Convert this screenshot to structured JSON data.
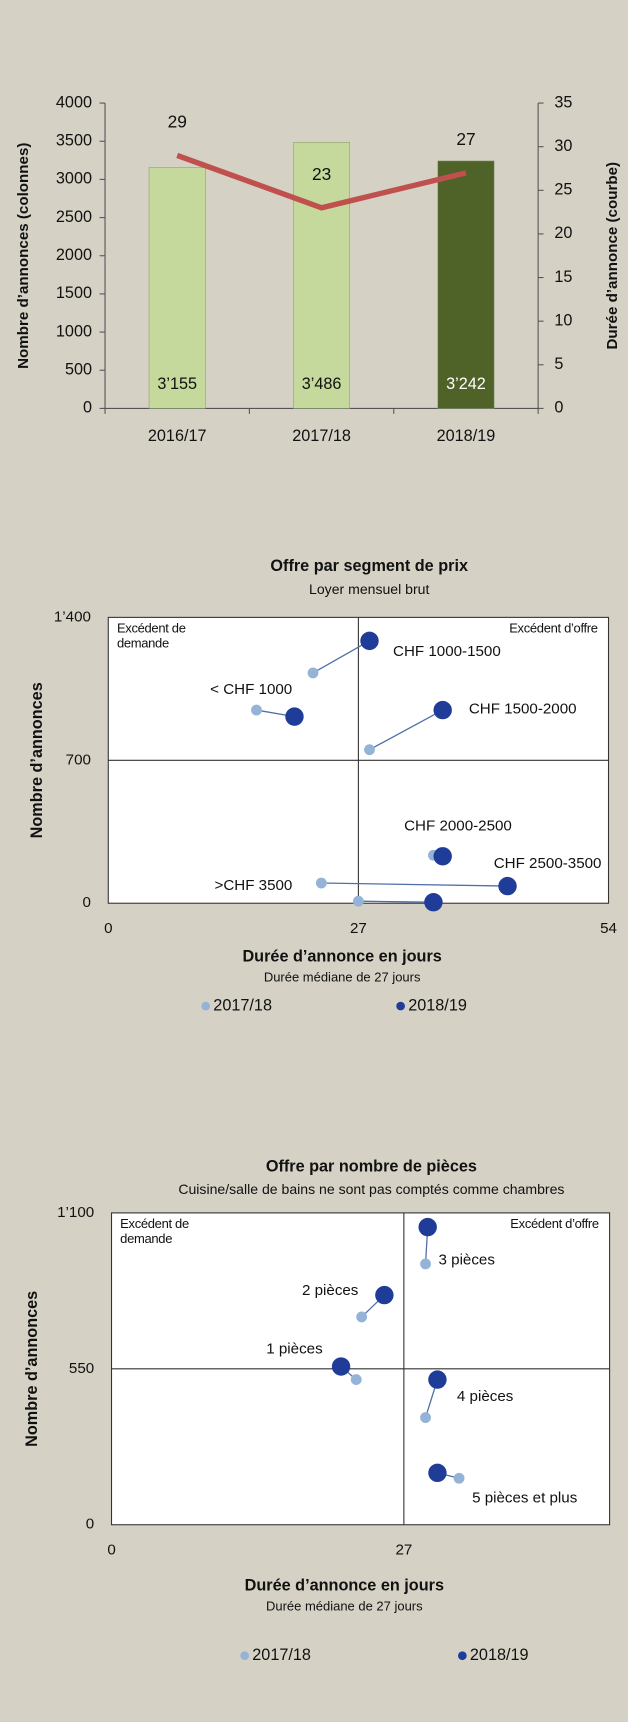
{
  "chart_data": [
    {
      "type": "bar",
      "categories": [
        "2016/17",
        "2017/18",
        "2018/19"
      ],
      "ylabel": "Nombre d’annonces (colonnes)",
      "y2label": "Durée d’annonce (courbe)",
      "ylim": [
        0,
        4000
      ],
      "yticks": [
        0,
        500,
        1000,
        1500,
        2000,
        2500,
        3000,
        3500,
        4000
      ],
      "y2lim": [
        0,
        35
      ],
      "y2ticks": [
        0,
        5,
        10,
        15,
        20,
        25,
        30,
        35
      ],
      "series": [
        {
          "type": "bar",
          "colors": [
            "#c4d99b",
            "#c4d99b",
            "#4f6228"
          ],
          "values": [
            3155,
            3486,
            3242
          ],
          "value_labels": [
            "3’155",
            "3’486",
            "3’242"
          ]
        },
        {
          "type": "line",
          "axis": "y2",
          "color": "#c0504d",
          "values": [
            29,
            23,
            27
          ]
        }
      ]
    },
    {
      "type": "scatter",
      "title": "Offre par segment de prix",
      "subtitle": "Loyer mensuel brut",
      "xlabel": "Durée d’annonce en jours",
      "xlabel_note": "Durée médiane de 27 jours",
      "ylabel": "Nombre d’annonces",
      "annotations": [
        "Excédent de demande",
        "Excédent d’offre"
      ],
      "xlim": [
        0,
        54
      ],
      "xticks": [
        0,
        27,
        54
      ],
      "ylim": [
        0,
        1400
      ],
      "yticks": [
        0,
        700,
        {
          "value": 1400,
          "label": "1’400"
        }
      ],
      "labels": [
        "< CHF 1000",
        "CHF 1000-1500",
        "CHF 1500-2000",
        "CHF 2000-2500",
        "CHF 2500-3500",
        ">CHF 3500"
      ],
      "series": [
        {
          "name": "2017/18",
          "color": "#95b3d7",
          "x": [
            16.0,
            22.1,
            28.2,
            35.1,
            23.0,
            27.0
          ],
          "values": [
            946,
            1128,
            752,
            235,
            99,
            10
          ]
        },
        {
          "name": "2018/19",
          "color": "#1f3c99",
          "x": [
            20.1,
            28.2,
            36.1,
            36.1,
            43.1,
            35.1
          ],
          "values": [
            914,
            1285,
            946,
            230,
            84,
            5
          ]
        }
      ]
    },
    {
      "type": "scatter",
      "title": "Offre par nombre de pièces",
      "subtitle": "Cuisine/salle de bains ne sont pas comptés comme chambres",
      "xlabel": "Durée d’annonce en jours",
      "xlabel_note": "Durée médiane de 27 jours",
      "ylabel": "Nombre d’annonces",
      "annotations": [
        "Excédent de demande",
        "Excédent d’offre"
      ],
      "xlim": [
        0,
        46
      ],
      "xticks": [
        0,
        27
      ],
      "ylim": [
        0,
        1100
      ],
      "yticks": [
        0,
        550,
        {
          "value": 1100,
          "label": "1’100"
        }
      ],
      "labels": [
        "3 pièces",
        "2 pièces",
        "1 pièces",
        "4 pièces",
        "5 pièces et plus"
      ],
      "series": [
        {
          "name": "2017/18",
          "color": "#95b3d7",
          "x": [
            29.0,
            23.1,
            22.6,
            29.0,
            32.1
          ],
          "values": [
            920,
            733,
            512,
            378,
            164
          ]
        },
        {
          "name": "2018/19",
          "color": "#1f3c99",
          "x": [
            29.2,
            25.2,
            21.2,
            30.1,
            30.1
          ],
          "values": [
            1050,
            810,
            558,
            512,
            183
          ]
        }
      ]
    }
  ]
}
